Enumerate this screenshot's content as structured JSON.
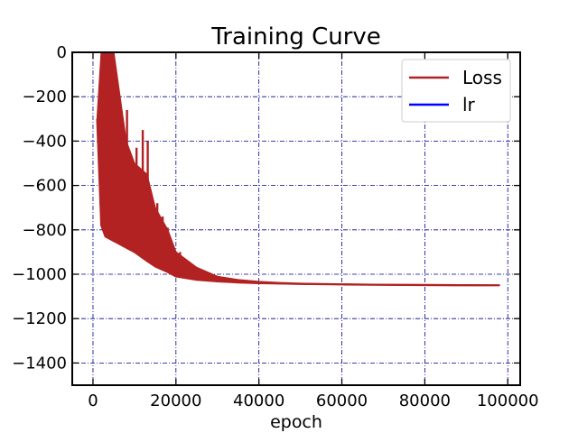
{
  "chart_data": {
    "type": "line",
    "title": "Training Curve",
    "xlabel": "epoch",
    "ylabel": "",
    "xlim": [
      -5000,
      103000
    ],
    "ylim": [
      -1500,
      0
    ],
    "xticks": [
      0,
      20000,
      40000,
      60000,
      80000,
      100000
    ],
    "xtick_labels": [
      "0",
      "20000",
      "40000",
      "60000",
      "80000",
      "100000"
    ],
    "yticks": [
      0,
      -200,
      -400,
      -600,
      -800,
      -1000,
      -1200,
      -1400
    ],
    "ytick_labels": [
      "0",
      "−200",
      "−400",
      "−600",
      "−800",
      "−1000",
      "−1200",
      "−1400"
    ],
    "grid": true,
    "legend_position": "top-right",
    "series": [
      {
        "name": "Loss",
        "color": "#b22222",
        "envelope": {
          "x": [
            1000,
            2000,
            3000,
            5000,
            8000,
            10000,
            13000,
            15000,
            18000,
            20000,
            25000,
            30000,
            35000,
            40000,
            45000,
            50000,
            60000,
            70000,
            80000,
            90000,
            98000
          ],
          "lower": [
            -300,
            -780,
            -830,
            -850,
            -880,
            -900,
            -940,
            -965,
            -990,
            -1010,
            -1025,
            -1032,
            -1037,
            -1040,
            -1042,
            -1044,
            -1046,
            -1048,
            -1049,
            -1050,
            -1050
          ],
          "upper": [
            -300,
            0,
            0,
            0,
            -400,
            -500,
            -550,
            -700,
            -800,
            -900,
            -970,
            -1010,
            -1025,
            -1033,
            -1038,
            -1041,
            -1044,
            -1046,
            -1047,
            -1048,
            -1049
          ]
        },
        "spikes": [
          {
            "x": 1800,
            "y": -150
          },
          {
            "x": 6200,
            "y": -300
          },
          {
            "x": 8200,
            "y": -260
          },
          {
            "x": 10500,
            "y": -430
          },
          {
            "x": 12000,
            "y": -350
          },
          {
            "x": 13200,
            "y": -400
          },
          {
            "x": 15500,
            "y": -680
          },
          {
            "x": 16800,
            "y": -740
          },
          {
            "x": 18000,
            "y": -790
          },
          {
            "x": 21000,
            "y": -900
          },
          {
            "x": 24000,
            "y": -960
          },
          {
            "x": 29000,
            "y": -1000
          }
        ]
      },
      {
        "name": "lr",
        "color": "#0000ff",
        "values": []
      }
    ]
  }
}
